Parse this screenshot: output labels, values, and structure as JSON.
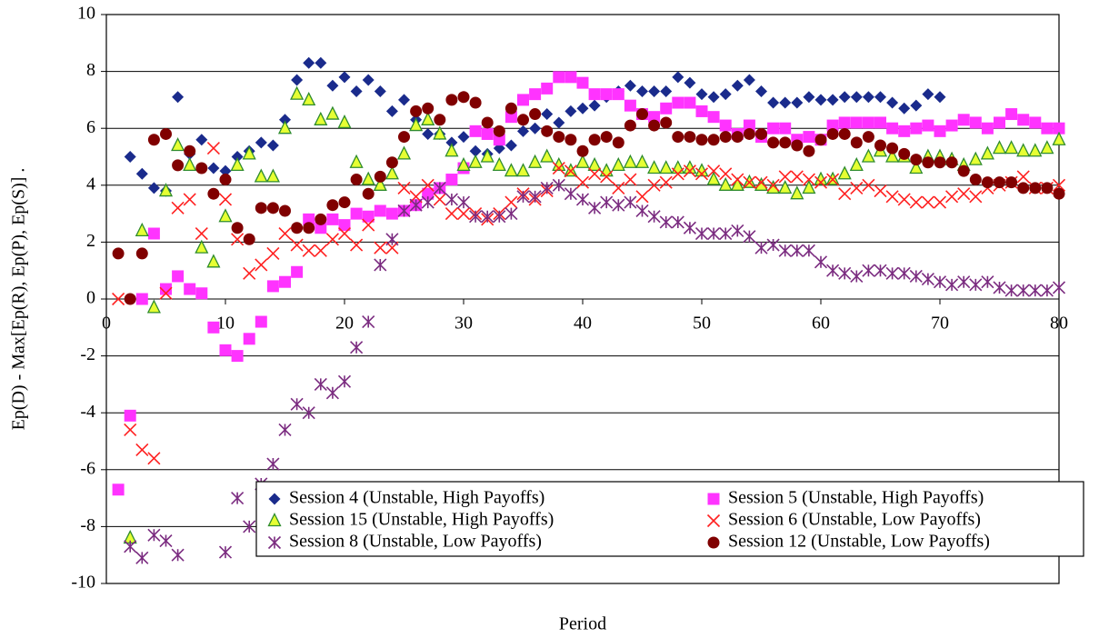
{
  "chart_data": {
    "type": "scatter",
    "y_label": "Ep(D) - Max[Ep(R), Ep(P), Ep(S)]  .",
    "x_label": "Period",
    "xlim": [
      0,
      80
    ],
    "xticks": [
      0,
      10,
      20,
      30,
      40,
      50,
      60,
      70,
      80
    ],
    "ylim": [
      -10,
      10
    ],
    "yticks": [
      -10,
      -8,
      -6,
      -4,
      -2,
      0,
      2,
      4,
      6,
      8,
      10
    ],
    "grid": true,
    "legend": "lower right",
    "x": [
      1,
      2,
      3,
      4,
      5,
      6,
      7,
      8,
      9,
      10,
      11,
      12,
      13,
      14,
      15,
      16,
      17,
      18,
      19,
      20,
      21,
      22,
      23,
      24,
      25,
      26,
      27,
      28,
      29,
      30,
      31,
      32,
      33,
      34,
      35,
      36,
      37,
      38,
      39,
      40,
      41,
      42,
      43,
      44,
      45,
      46,
      47,
      48,
      49,
      50,
      51,
      52,
      53,
      54,
      55,
      56,
      57,
      58,
      59,
      60,
      61,
      62,
      63,
      64,
      65,
      66,
      67,
      68,
      69,
      70,
      71,
      72,
      73,
      74,
      75,
      76,
      77,
      78,
      79,
      80
    ],
    "series": [
      {
        "name": "Session 4 (Unstable, High Payoffs)",
        "marker": "diamond",
        "color": "#1a2b8c",
        "values": [
          null,
          5.0,
          4.4,
          3.9,
          3.8,
          7.1,
          5.1,
          5.6,
          4.6,
          4.5,
          5.0,
          5.2,
          5.5,
          5.4,
          6.3,
          7.7,
          8.3,
          8.3,
          7.5,
          7.8,
          7.3,
          7.7,
          7.3,
          6.6,
          7.0,
          6.3,
          5.8,
          5.8,
          5.5,
          5.7,
          5.2,
          5.1,
          5.3,
          5.4,
          5.9,
          6.0,
          6.5,
          6.2,
          6.6,
          6.7,
          6.8,
          7.1,
          7.3,
          7.5,
          7.3,
          7.3,
          7.3,
          7.8,
          7.6,
          7.2,
          7.1,
          7.2,
          7.5,
          7.7,
          7.3,
          6.9,
          6.9,
          6.9,
          7.1,
          7.0,
          7.0,
          7.1,
          7.1,
          7.1,
          7.1,
          6.9,
          6.7,
          6.8,
          7.2,
          7.1,
          null,
          null,
          null,
          null,
          null,
          null,
          null,
          null,
          null,
          null
        ]
      },
      {
        "name": "Session 5 (Unstable, High Payoffs)",
        "marker": "square",
        "color": "#ff33ff",
        "values": [
          -6.7,
          -4.1,
          0.0,
          2.3,
          0.35,
          0.8,
          0.35,
          0.2,
          -1.0,
          -1.8,
          -2.0,
          -1.4,
          -0.8,
          0.45,
          0.6,
          0.95,
          2.8,
          2.5,
          2.8,
          2.6,
          3.0,
          2.9,
          3.1,
          3.0,
          3.1,
          3.3,
          3.7,
          3.9,
          4.2,
          4.6,
          5.9,
          5.8,
          5.6,
          6.4,
          7.0,
          7.2,
          7.4,
          7.8,
          7.8,
          7.6,
          7.2,
          7.2,
          7.2,
          6.8,
          6.5,
          6.4,
          6.7,
          6.9,
          6.9,
          6.6,
          6.4,
          6.1,
          5.8,
          6.1,
          5.7,
          6.0,
          6.0,
          5.6,
          5.7,
          5.6,
          6.1,
          6.2,
          6.2,
          6.2,
          6.2,
          6.0,
          5.9,
          6.0,
          6.1,
          5.9,
          6.1,
          6.3,
          6.2,
          6.0,
          6.2,
          6.5,
          6.3,
          6.2,
          6.0,
          6.0
        ]
      },
      {
        "name": "Session 15 (Unstable, High Payoffs)",
        "marker": "triangle",
        "color": "#e6ff33",
        "edgecolor": "#2e8b2e",
        "values": [
          null,
          -8.4,
          2.4,
          -0.3,
          3.8,
          5.4,
          4.7,
          1.8,
          1.3,
          2.9,
          4.7,
          5.1,
          4.3,
          4.3,
          6.0,
          7.2,
          7.0,
          6.3,
          6.5,
          6.2,
          4.8,
          4.2,
          4.0,
          4.4,
          5.1,
          6.1,
          6.3,
          5.8,
          5.2,
          4.7,
          4.8,
          5.0,
          4.7,
          4.5,
          4.5,
          4.8,
          5.0,
          4.7,
          4.5,
          4.8,
          4.7,
          4.5,
          4.7,
          4.8,
          4.8,
          4.6,
          4.6,
          4.6,
          4.6,
          4.5,
          4.2,
          4.0,
          4.0,
          4.1,
          4.0,
          3.9,
          3.9,
          3.7,
          3.9,
          4.2,
          4.2,
          4.4,
          4.7,
          5.0,
          5.2,
          5.0,
          5.0,
          4.6,
          5.0,
          5.0,
          4.9,
          4.7,
          4.9,
          5.1,
          5.3,
          5.3,
          5.2,
          5.2,
          5.3,
          5.6
        ]
      },
      {
        "name": "Session 6 (Unstable, Low Payoffs)",
        "marker": "x",
        "color": "#ff2020",
        "values": [
          0.0,
          -4.6,
          -5.3,
          -5.6,
          0.2,
          3.2,
          3.5,
          2.3,
          5.3,
          3.5,
          2.1,
          0.9,
          1.2,
          1.6,
          2.3,
          1.9,
          1.7,
          1.7,
          2.1,
          2.3,
          1.9,
          2.6,
          1.8,
          1.8,
          3.9,
          3.6,
          4.0,
          3.5,
          3.0,
          3.0,
          3.0,
          2.8,
          3.0,
          3.4,
          3.7,
          3.5,
          3.8,
          4.6,
          4.5,
          4.1,
          4.4,
          4.3,
          3.9,
          4.2,
          3.6,
          4.0,
          4.1,
          4.4,
          4.5,
          4.4,
          4.5,
          4.4,
          4.2,
          4.1,
          4.1,
          4.0,
          4.3,
          4.3,
          4.2,
          4.1,
          4.2,
          3.7,
          3.9,
          4.0,
          3.8,
          3.6,
          3.5,
          3.4,
          3.4,
          3.4,
          3.6,
          3.7,
          3.6,
          3.9,
          4.0,
          4.1,
          4.3,
          3.9,
          3.9,
          4.0
        ]
      },
      {
        "name": "Session 8 (Unstable, Low Payoffs)",
        "marker": "star",
        "color": "#7b2c80",
        "values": [
          null,
          -8.7,
          -9.1,
          -8.3,
          -8.5,
          -9.0,
          null,
          null,
          null,
          -8.9,
          -7.0,
          -8.0,
          -6.5,
          -5.8,
          -4.6,
          -3.7,
          -4.0,
          -3.0,
          -3.3,
          -2.9,
          -1.7,
          -0.8,
          1.2,
          2.1,
          3.1,
          3.3,
          3.4,
          3.9,
          3.5,
          3.4,
          2.9,
          2.9,
          2.9,
          3.0,
          3.6,
          3.6,
          3.9,
          4.0,
          3.7,
          3.5,
          3.2,
          3.4,
          3.3,
          3.4,
          3.1,
          2.9,
          2.7,
          2.7,
          2.5,
          2.3,
          2.3,
          2.3,
          2.4,
          2.2,
          1.8,
          1.9,
          1.7,
          1.7,
          1.7,
          1.3,
          1.0,
          0.9,
          0.8,
          1.0,
          1.0,
          0.9,
          0.9,
          0.8,
          0.7,
          0.6,
          0.5,
          0.6,
          0.5,
          0.6,
          0.4,
          0.3,
          0.3,
          0.3,
          0.3,
          0.4
        ]
      },
      {
        "name": "Session 12 (Unstable, Low Payoffs)",
        "marker": "circle",
        "color": "#800000",
        "values": [
          1.6,
          0.0,
          1.6,
          5.6,
          5.8,
          4.7,
          5.2,
          4.6,
          3.7,
          4.2,
          2.5,
          2.1,
          3.2,
          3.2,
          3.1,
          2.5,
          2.5,
          2.8,
          3.3,
          3.4,
          4.2,
          3.7,
          4.3,
          4.8,
          5.7,
          6.6,
          6.7,
          6.3,
          7.0,
          7.1,
          6.9,
          6.2,
          5.9,
          6.7,
          6.3,
          6.5,
          5.9,
          5.7,
          5.6,
          5.2,
          5.6,
          5.7,
          5.5,
          6.1,
          6.5,
          6.1,
          6.2,
          5.7,
          5.7,
          5.6,
          5.6,
          5.7,
          5.7,
          5.8,
          5.8,
          5.5,
          5.5,
          5.4,
          5.2,
          5.6,
          5.8,
          5.8,
          5.5,
          5.7,
          5.4,
          5.3,
          5.1,
          4.9,
          4.8,
          4.8,
          4.8,
          4.5,
          4.2,
          4.1,
          4.1,
          4.1,
          3.9,
          3.9,
          3.9,
          3.7
        ]
      }
    ]
  }
}
